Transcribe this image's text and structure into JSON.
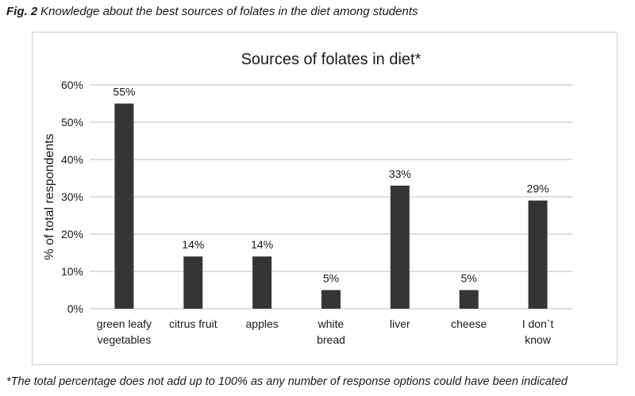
{
  "figure": {
    "label": "Fig. 2",
    "caption": "Knowledge about the best sources of folates in the diet among students",
    "footnote": "*The total percentage does not add up to 100% as any number of response options could have been indicated"
  },
  "colors": {
    "bar": "#353535",
    "grid": "#bfbfbf",
    "axis": "#bfbfbf"
  },
  "chart_data": {
    "type": "bar",
    "title": "Sources of folates in diet*",
    "xlabel": "",
    "ylabel": "% of total respondents",
    "ylim": [
      0,
      60
    ],
    "yticks": [
      0,
      10,
      20,
      30,
      40,
      50,
      60
    ],
    "ytick_labels": [
      "0%",
      "10%",
      "20%",
      "30%",
      "40%",
      "50%",
      "60%"
    ],
    "grid": true,
    "categories": [
      [
        "green leafy",
        "vegetables"
      ],
      [
        "citrus fruit"
      ],
      [
        "apples"
      ],
      [
        "white",
        "bread"
      ],
      [
        "liver"
      ],
      [
        "cheese"
      ],
      [
        "I don`t",
        "know"
      ]
    ],
    "values": [
      55,
      14,
      14,
      5,
      33,
      5,
      29
    ],
    "data_labels": [
      "55%",
      "14%",
      "14%",
      "5%",
      "33%",
      "5%",
      "29%"
    ]
  }
}
